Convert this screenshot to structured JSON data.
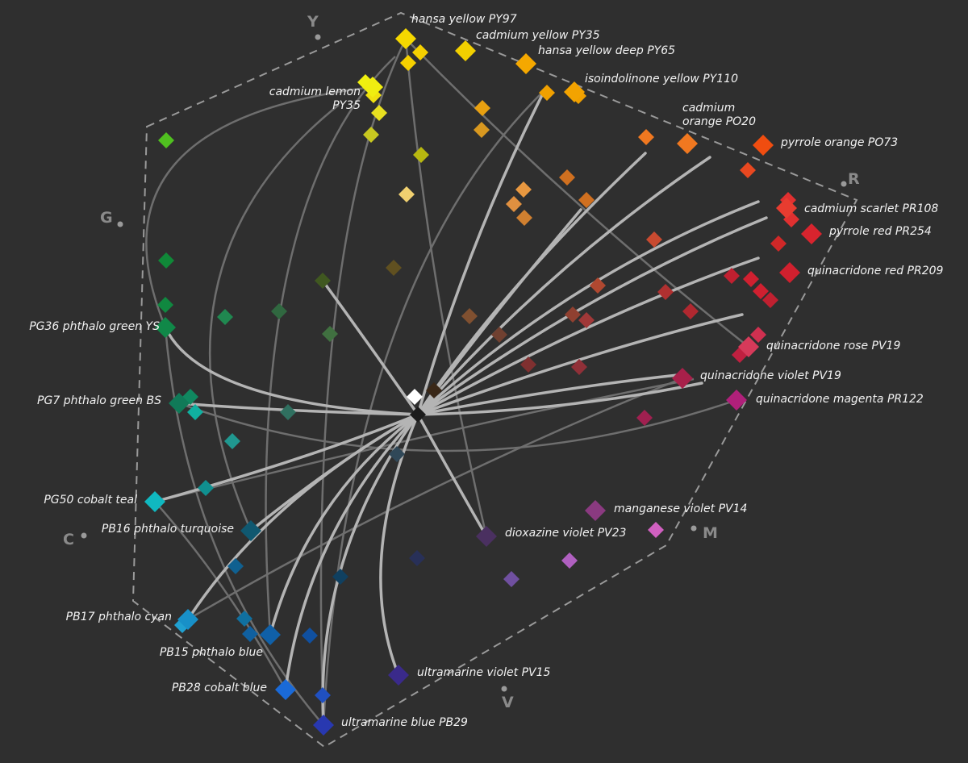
{
  "axis_labels": [
    "Y",
    "R",
    "M",
    "V",
    "C",
    "G"
  ],
  "pigments": [
    "hansa yellow PY97",
    "cadmium yellow PY35",
    "hansa yellow deep PY65",
    "isoindolinone yellow PY110",
    "cadmium lemon PY35",
    "cadmium orange PO20",
    "pyrrole orange PO73",
    "cadmium scarlet PR108",
    "pyrrole red PR254",
    "quinacridone red PR209",
    "quinacridone rose PV19",
    "quinacridone violet PV19",
    "quinacridone magenta PR122",
    "manganese violet PV14",
    "dioxazine violet PV23",
    "ultramarine violet PV15",
    "ultramarine blue PB29",
    "PB28 cobalt blue",
    "PB15 phthalo blue",
    "PB17 phthalo cyan",
    "PB16 phthalo turquoise",
    "PG50 cobalt teal",
    "PG7 phthalo green BS",
    "PG36 phthalo green YS"
  ]
}
